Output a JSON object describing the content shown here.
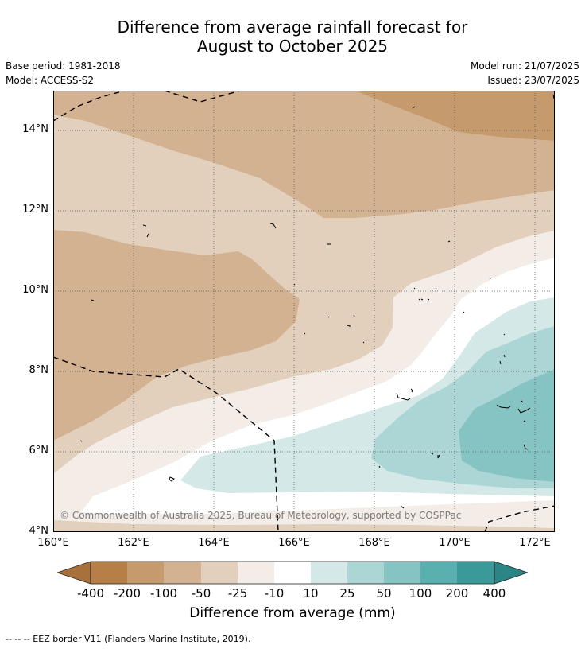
{
  "title": {
    "line1": "Difference from average rainfall forecast for",
    "line2": "August to October 2025"
  },
  "info": {
    "base_period": "Base period: 1981-2018",
    "model": "Model: ACCESS-S2",
    "model_run": "Model run: 21/07/2025",
    "issued": "Issued: 23/07/2025"
  },
  "map": {
    "lat_labels": [
      "14°N",
      "12°N",
      "10°N",
      "8°N",
      "6°N",
      "4°N"
    ],
    "lon_labels": [
      "160°E",
      "162°E",
      "164°E",
      "166°E",
      "168°E",
      "170°E",
      "172°E"
    ],
    "lat_values": [
      14,
      12,
      10,
      8,
      6,
      4
    ],
    "lon_values": [
      160,
      162,
      164,
      166,
      168,
      170,
      172
    ],
    "extent": {
      "lon_min": 160,
      "lon_max": 172.5,
      "lat_min": 4,
      "lat_max": 15
    },
    "copyright": "© Commonwealth of Australia 2025, Bureau of Meteorology, supported by COSPPac"
  },
  "colorbar": {
    "title": "Difference from average (mm)",
    "labels": [
      "-400",
      "-200",
      "-100",
      "-50",
      "-25",
      "-10",
      "10",
      "25",
      "50",
      "100",
      "200",
      "400"
    ],
    "colors": [
      "#a8703a",
      "#b57f47",
      "#c59a6c",
      "#d3b292",
      "#e2cfbc",
      "#f4ede7",
      "#ffffff",
      "#d5e8e8",
      "#acd6d6",
      "#86c3c3",
      "#5aafaf",
      "#3a9a99",
      "#2b8585"
    ]
  },
  "legend": {
    "eez": "--  --  -- EEZ border V11 (Flanders Marine Institute, 2019)."
  }
}
